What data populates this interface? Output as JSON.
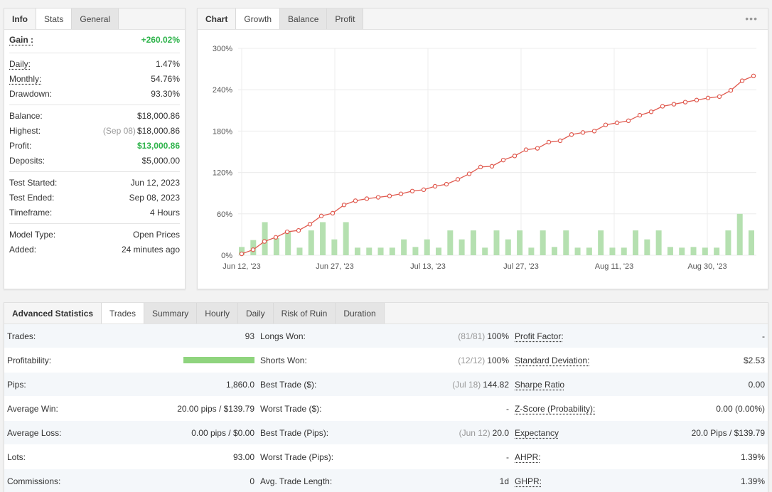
{
  "info_panel": {
    "tabs": [
      "Info",
      "Stats",
      "General"
    ],
    "gain": {
      "label": "Gain :",
      "value": "+260.02%"
    },
    "rows1": [
      {
        "label": "Daily:",
        "value": "1.47%",
        "ul": true
      },
      {
        "label": "Monthly:",
        "value": "54.76%",
        "ul": true
      },
      {
        "label": "Drawdown:",
        "value": "93.30%",
        "ul": false
      }
    ],
    "balance": {
      "label": "Balance:",
      "value": "$18,000.86"
    },
    "highest": {
      "label": "Highest:",
      "date": "(Sep 08)",
      "value": "$18,000.86"
    },
    "profit": {
      "label": "Profit:",
      "value": "$13,000.86"
    },
    "deposits": {
      "label": "Deposits:",
      "value": "$5,000.00"
    },
    "test_started": {
      "label": "Test Started:",
      "value": "Jun 12, 2023"
    },
    "test_ended": {
      "label": "Test Ended:",
      "value": "Sep 08, 2023"
    },
    "timeframe": {
      "label": "Timeframe:",
      "value": "4 Hours"
    },
    "model_type": {
      "label": "Model Type:",
      "value": "Open Prices"
    },
    "added": {
      "label": "Added:",
      "value": "24 minutes ago"
    }
  },
  "chart_panel": {
    "tabs": [
      "Chart",
      "Growth",
      "Balance",
      "Profit"
    ],
    "menu_icon": "ellipsis-icon"
  },
  "chart_data": {
    "type": "line",
    "y_ticks": [
      "0%",
      "60%",
      "120%",
      "180%",
      "240%",
      "300%"
    ],
    "ylim": [
      0,
      300
    ],
    "x_ticks": [
      "Jun 12, '23",
      "Jun 27, '23",
      "Jul 13, '23",
      "Jul 27, '23",
      "Aug 11, '23",
      "Aug 30, '23"
    ],
    "line_color": "#e05a4f",
    "bar_color": "#b5e0b0",
    "growth": [
      2,
      8,
      20,
      26,
      34,
      36,
      45,
      57,
      61,
      73,
      79,
      82,
      84,
      86,
      89,
      93,
      95,
      100,
      103,
      110,
      118,
      128,
      129,
      138,
      144,
      153,
      155,
      164,
      166,
      175,
      178,
      180,
      189,
      192,
      195,
      203,
      208,
      216,
      219,
      222,
      225,
      228,
      230,
      239,
      253,
      260
    ],
    "bars": [
      12,
      22,
      48,
      25,
      35,
      11,
      36,
      48,
      23,
      48,
      11,
      11,
      11,
      11,
      23,
      12,
      23,
      11,
      36,
      23,
      36,
      11,
      36,
      23,
      36,
      11,
      36,
      12,
      36,
      11,
      11,
      36,
      11,
      11,
      36,
      23,
      36,
      12,
      11,
      12,
      11,
      11,
      36,
      60,
      36
    ]
  },
  "advanced": {
    "tabs": [
      "Advanced Statistics",
      "Trades",
      "Summary",
      "Hourly",
      "Daily",
      "Risk of Ruin",
      "Duration"
    ],
    "col1": [
      {
        "label": "Trades:",
        "value": "93"
      },
      {
        "label": "Profitability:",
        "value": ""
      },
      {
        "label": "Pips:",
        "value": "1,860.0"
      },
      {
        "label": "Average Win:",
        "value": "20.00 pips / $139.79"
      },
      {
        "label": "Average Loss:",
        "value": "0.00 pips / $0.00"
      },
      {
        "label": "Lots:",
        "value": "93.00"
      },
      {
        "label": "Commissions:",
        "value": "0"
      }
    ],
    "col2": [
      {
        "label": "Longs Won:",
        "sub": "(81/81)",
        "value": "100%"
      },
      {
        "label": "Shorts Won:",
        "sub": "(12/12)",
        "value": "100%"
      },
      {
        "label": "Best Trade ($):",
        "sub": "(Jul 18)",
        "value": "144.82"
      },
      {
        "label": "Worst Trade ($):",
        "sub": "",
        "value": "-"
      },
      {
        "label": "Best Trade (Pips):",
        "sub": "(Jun 12)",
        "value": "20.0"
      },
      {
        "label": "Worst Trade (Pips):",
        "sub": "",
        "value": "-"
      },
      {
        "label": "Avg. Trade Length:",
        "sub": "",
        "value": "1d"
      }
    ],
    "col3": [
      {
        "label": "Profit Factor:",
        "value": "-"
      },
      {
        "label": "Standard Deviation:",
        "value": "$2.53"
      },
      {
        "label": "Sharpe Ratio",
        "value": "0.00"
      },
      {
        "label": "Z-Score (Probability):",
        "value": "0.00 (0.00%)"
      },
      {
        "label": "Expectancy",
        "value": "20.0 Pips / $139.79"
      },
      {
        "label": "AHPR:",
        "value": "1.39%"
      },
      {
        "label": "GHPR:",
        "value": "1.39%"
      }
    ],
    "profitability_pct": 100
  }
}
